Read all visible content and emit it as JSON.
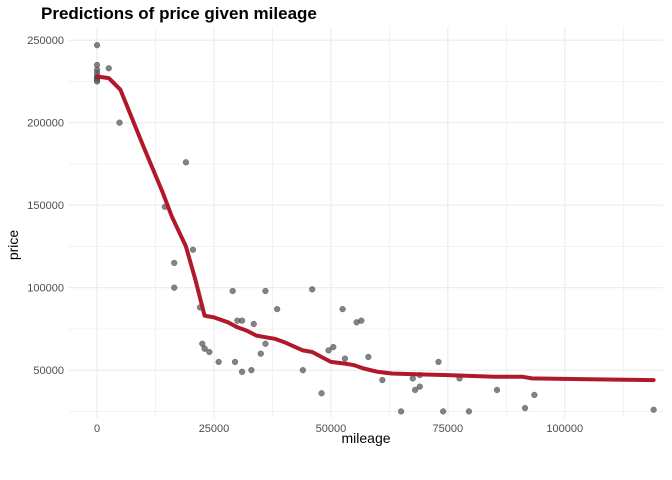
{
  "chart_data": {
    "type": "scatter",
    "title": "Predictions of price given mileage",
    "xlabel": "mileage",
    "ylabel": "price",
    "xlim": [
      -6000,
      121000
    ],
    "ylim": [
      21000,
      258000
    ],
    "x_ticks": [
      0,
      25000,
      50000,
      75000,
      100000
    ],
    "x_tick_labels": [
      "0",
      "25000",
      "50000",
      "75000",
      "100000"
    ],
    "y_ticks": [
      50000,
      100000,
      150000,
      200000,
      250000
    ],
    "y_tick_labels": [
      "50000",
      "100000",
      "150000",
      "200000",
      "250000"
    ],
    "grid": true,
    "colors": {
      "points": "#595959",
      "line": "#b2182b",
      "grid": "#ebebeb"
    },
    "points": [
      [
        0,
        247000
      ],
      [
        0,
        235000
      ],
      [
        0,
        232000
      ],
      [
        0,
        230000
      ],
      [
        0,
        228000
      ],
      [
        0,
        227000
      ],
      [
        0,
        226000
      ],
      [
        0,
        225000
      ],
      [
        2500,
        233000
      ],
      [
        4800,
        200000
      ],
      [
        14500,
        149000
      ],
      [
        16500,
        115000
      ],
      [
        16500,
        100000
      ],
      [
        19000,
        176000
      ],
      [
        20500,
        123000
      ],
      [
        22000,
        88000
      ],
      [
        22500,
        66000
      ],
      [
        23000,
        63000
      ],
      [
        24000,
        61000
      ],
      [
        26000,
        55000
      ],
      [
        29000,
        98000
      ],
      [
        29500,
        55000
      ],
      [
        30000,
        80000
      ],
      [
        31000,
        80000
      ],
      [
        31000,
        49000
      ],
      [
        33000,
        50000
      ],
      [
        33500,
        78000
      ],
      [
        35000,
        60000
      ],
      [
        36000,
        98000
      ],
      [
        36000,
        66000
      ],
      [
        38500,
        87000
      ],
      [
        44000,
        50000
      ],
      [
        46000,
        99000
      ],
      [
        48000,
        36000
      ],
      [
        49500,
        62000
      ],
      [
        50500,
        64000
      ],
      [
        52500,
        87000
      ],
      [
        53000,
        57000
      ],
      [
        55500,
        79000
      ],
      [
        56500,
        80000
      ],
      [
        58000,
        58000
      ],
      [
        61000,
        44000
      ],
      [
        65000,
        25000
      ],
      [
        67500,
        45000
      ],
      [
        68000,
        38000
      ],
      [
        69000,
        40000
      ],
      [
        69000,
        47000
      ],
      [
        73000,
        55000
      ],
      [
        74000,
        25000
      ],
      [
        77500,
        45000
      ],
      [
        79500,
        25000
      ],
      [
        85500,
        38000
      ],
      [
        91500,
        27000
      ],
      [
        93500,
        35000
      ],
      [
        119000,
        26000
      ]
    ],
    "series": [
      {
        "type": "line",
        "values": [
          [
            0,
            228000
          ],
          [
            2500,
            227000
          ],
          [
            5000,
            220000
          ],
          [
            10000,
            185000
          ],
          [
            14000,
            158000
          ],
          [
            16000,
            143000
          ],
          [
            19000,
            125000
          ],
          [
            21000,
            105000
          ],
          [
            23000,
            83000
          ],
          [
            25000,
            82000
          ],
          [
            28000,
            79000
          ],
          [
            30000,
            76000
          ],
          [
            32000,
            74000
          ],
          [
            34000,
            71000
          ],
          [
            36000,
            70000
          ],
          [
            38000,
            69000
          ],
          [
            40000,
            67000
          ],
          [
            44000,
            62000
          ],
          [
            46000,
            61000
          ],
          [
            48000,
            58000
          ],
          [
            50000,
            55000
          ],
          [
            53000,
            54000
          ],
          [
            55000,
            53000
          ],
          [
            57000,
            51000
          ],
          [
            60000,
            49000
          ],
          [
            63000,
            48000
          ],
          [
            68000,
            47500
          ],
          [
            75000,
            47000
          ],
          [
            85000,
            46000
          ],
          [
            91000,
            46000
          ],
          [
            93000,
            45000
          ],
          [
            105000,
            44500
          ],
          [
            119000,
            44000
          ]
        ]
      }
    ]
  }
}
